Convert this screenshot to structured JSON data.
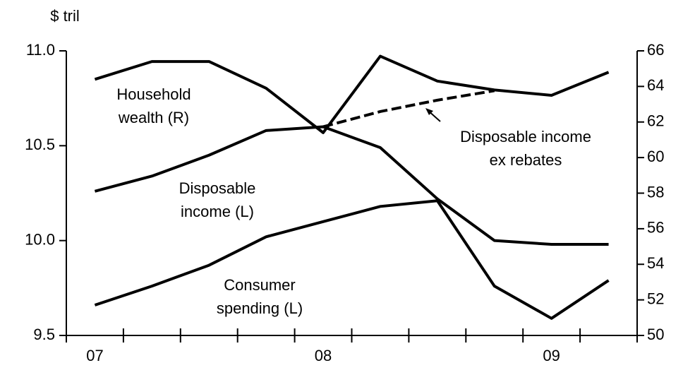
{
  "chart_data": {
    "type": "line",
    "y_label": "$ tril",
    "categories": [
      "07",
      null,
      null,
      null,
      "08",
      null,
      null,
      null,
      "09",
      null
    ],
    "ylim": [
      9.5,
      11
    ],
    "yticks": [
      9.5,
      {
        "value": 10,
        "label": "10.0"
      },
      10.5,
      {
        "value": 11,
        "label": "11.0"
      }
    ],
    "y2lim": [
      50,
      66
    ],
    "y2ticks": [
      50,
      52,
      54,
      56,
      58,
      60,
      62,
      64,
      66
    ],
    "series": [
      {
        "color": "#000000",
        "dashed": false,
        "values": [
          10.26,
          10.34,
          10.45,
          10.58,
          10.6,
          10.49,
          10.22,
          10.0,
          9.98,
          9.98
        ]
      },
      {
        "color": "#000000",
        "dashed": false,
        "values": [
          9.66,
          9.76,
          9.87,
          10.02,
          10.1,
          10.18,
          10.21,
          9.76,
          9.59,
          9.79
        ]
      },
      {
        "color": "#000000",
        "dashed": false,
        "axis": "y2",
        "values": [
          64.4,
          65.4,
          65.4,
          63.9,
          61.4,
          65.7,
          64.3,
          63.8,
          63.5,
          64.8
        ]
      },
      {
        "color": "#000000",
        "dashed": true,
        "values": [
          null,
          null,
          null,
          null,
          10.6,
          10.68,
          10.74,
          10.79,
          null,
          null
        ]
      }
    ],
    "annotations": [
      {
        "lines": [
          "Household",
          "wealth (R)"
        ]
      },
      {
        "lines": [
          "Disposable",
          "income (L)"
        ]
      },
      {
        "lines": [
          "Consumer",
          "spending (L)"
        ]
      },
      {
        "lines": [
          "Disposable income",
          "ex rebates"
        ]
      }
    ]
  }
}
